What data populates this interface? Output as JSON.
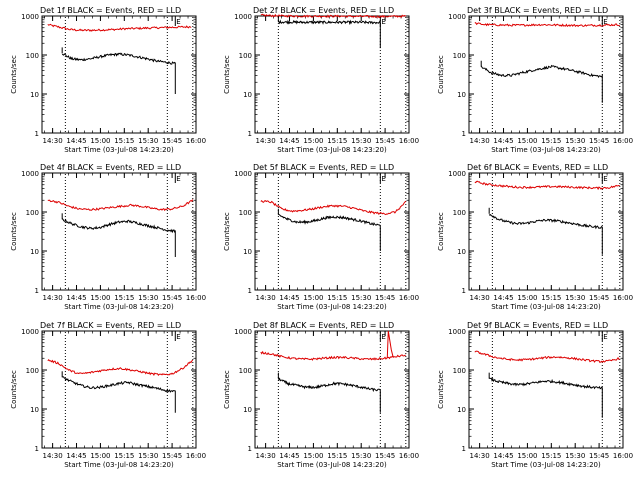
{
  "chart_data": {
    "type": "line",
    "grid": false,
    "yscale": "log",
    "ylim": [
      1,
      1000
    ],
    "y_ticks": [
      "1",
      "10",
      "100",
      "1000"
    ],
    "x_ticks": [
      "14:30",
      "14:45",
      "15:00",
      "15:15",
      "15:30",
      "15:45",
      "16:00"
    ],
    "xlim": [
      "14:23:20",
      "16:00:00"
    ],
    "xlabel": "Start Time (03-Jul-08 14:23:20)",
    "ylabel": "Counts/sec",
    "marker_label": "E",
    "panels": [
      {
        "title": "Det 1f BLACK = Events, RED = LLD",
        "dotted_lines": [
          "14:38",
          "15:42",
          "15:58"
        ],
        "marker_at": "15:47",
        "lld": {
          "start": "14:27",
          "end": "15:57",
          "levels": [
            600,
            520,
            450,
            430,
            430,
            440,
            450,
            470,
            480,
            490,
            500,
            510,
            520,
            530
          ]
        },
        "events": {
          "start": "14:36",
          "end": "15:47",
          "levels": [
            110,
            80,
            75,
            80,
            90,
            100,
            105,
            100,
            90,
            80,
            70,
            65,
            60
          ],
          "drop_to": 10
        }
      },
      {
        "title": "Det 2f BLACK = Events, RED = LLD",
        "dotted_lines": [
          "14:38",
          "15:42",
          "15:58"
        ],
        "marker_at": "15:42",
        "lld": {
          "start": "14:27",
          "end": "15:58",
          "levels": [
            1050,
            1020,
            1000,
            1000,
            990,
            990,
            990,
            990,
            980,
            980,
            970,
            970,
            980,
            990
          ]
        },
        "events": {
          "start": "14:38",
          "end": "15:42",
          "levels": [
            700,
            700,
            690,
            690,
            690,
            690,
            690,
            690,
            690,
            680,
            680
          ],
          "drop_to": 150
        }
      },
      {
        "title": "Det 3f BLACK = Events, RED = LLD",
        "dotted_lines": [
          "14:38",
          "15:47",
          "15:58"
        ],
        "marker_at": "15:47",
        "lld": {
          "start": "14:27",
          "end": "15:58",
          "levels": [
            650,
            600,
            590,
            580,
            580,
            590,
            600,
            590,
            580,
            570,
            570,
            580,
            590,
            600
          ]
        },
        "events": {
          "start": "14:31",
          "end": "15:47",
          "levels": [
            50,
            35,
            30,
            30,
            35,
            40,
            45,
            50,
            45,
            40,
            35,
            30,
            28
          ],
          "drop_to": 6
        }
      },
      {
        "title": "Det 4f BLACK = Events, RED = LLD",
        "dotted_lines": [
          "14:38",
          "15:42",
          "15:58"
        ],
        "marker_at": "15:47",
        "lld": {
          "start": "14:27",
          "end": "15:58",
          "levels": [
            200,
            180,
            140,
            120,
            115,
            120,
            130,
            140,
            150,
            140,
            125,
            115,
            120,
            140,
            200
          ]
        },
        "events": {
          "start": "14:36",
          "end": "15:47",
          "levels": [
            65,
            50,
            42,
            38,
            40,
            48,
            55,
            58,
            52,
            45,
            40,
            35,
            32
          ],
          "drop_to": 7
        }
      },
      {
        "title": "Det 5f BLACK = Events, RED = LLD",
        "dotted_lines": [
          "14:38",
          "15:42",
          "15:58"
        ],
        "marker_at": "15:42",
        "lld": {
          "start": "14:27",
          "end": "15:58",
          "levels": [
            190,
            180,
            120,
            105,
            110,
            120,
            135,
            145,
            140,
            125,
            105,
            95,
            90,
            100,
            180
          ]
        },
        "events": {
          "start": "14:38",
          "end": "15:42",
          "levels": [
            85,
            65,
            55,
            55,
            60,
            70,
            75,
            72,
            65,
            58,
            50,
            45
          ],
          "drop_to": 10
        }
      },
      {
        "title": "Det 6f BLACK = Events, RED = LLD",
        "dotted_lines": [
          "14:38",
          "15:47",
          "15:58"
        ],
        "marker_at": "15:47",
        "lld": {
          "start": "14:27",
          "end": "15:58",
          "levels": [
            600,
            520,
            480,
            450,
            430,
            430,
            440,
            450,
            440,
            430,
            420,
            410,
            420,
            480
          ]
        },
        "events": {
          "start": "14:36",
          "end": "15:47",
          "levels": [
            90,
            65,
            55,
            50,
            52,
            58,
            62,
            60,
            55,
            50,
            45,
            42,
            40
          ],
          "drop_to": 8
        }
      },
      {
        "title": "Det 7f BLACK = Events, RED = LLD",
        "dotted_lines": [
          "14:38",
          "15:42",
          "15:58"
        ],
        "marker_at": "15:47",
        "lld": {
          "start": "14:27",
          "end": "15:58",
          "levels": [
            180,
            150,
            100,
            80,
            85,
            95,
            105,
            110,
            100,
            90,
            80,
            75,
            80,
            110,
            180
          ]
        },
        "events": {
          "start": "14:36",
          "end": "15:47",
          "levels": [
            65,
            50,
            40,
            35,
            36,
            40,
            45,
            48,
            42,
            38,
            34,
            30,
            28
          ],
          "drop_to": 8
        }
      },
      {
        "title": "Det 8f BLACK = Events, RED = LLD",
        "dotted_lines": [
          "14:38",
          "15:42",
          "15:58"
        ],
        "marker_at": "15:42",
        "lld": {
          "start": "14:27",
          "end": "15:58",
          "levels": [
            280,
            260,
            220,
            200,
            190,
            190,
            200,
            210,
            210,
            200,
            190,
            190,
            200,
            220,
            240
          ],
          "spike": {
            "at": "15:47",
            "value": 1000
          }
        },
        "events": {
          "start": "14:38",
          "end": "15:42",
          "levels": [
            60,
            45,
            40,
            36,
            36,
            40,
            45,
            44,
            40,
            36,
            32,
            30
          ],
          "drop_to": 8
        }
      },
      {
        "title": "Det 9f BLACK = Events, RED = LLD",
        "dotted_lines": [
          "14:38",
          "15:47",
          "15:58"
        ],
        "marker_at": "15:47",
        "lld": {
          "start": "14:27",
          "end": "15:58",
          "levels": [
            300,
            250,
            210,
            190,
            180,
            185,
            195,
            210,
            215,
            205,
            190,
            175,
            165,
            170,
            200
          ]
        },
        "events": {
          "start": "14:36",
          "end": "15:47",
          "levels": [
            60,
            50,
            45,
            42,
            44,
            48,
            52,
            50,
            46,
            42,
            38,
            36,
            34
          ],
          "drop_to": 6
        }
      }
    ]
  }
}
